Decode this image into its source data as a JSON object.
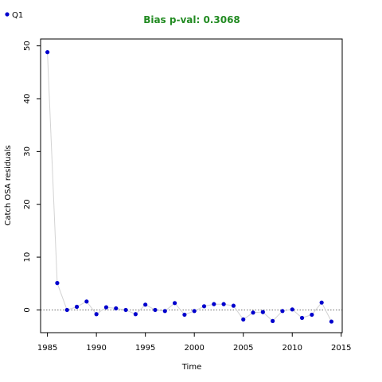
{
  "chart_data": {
    "type": "scatter",
    "title": "Bias p-val: 0.3068",
    "xlabel": "Time",
    "ylabel": "Catch OSA residuals",
    "xlim": [
      1984.3,
      2015.1
    ],
    "ylim": [
      -4.3,
      51.3
    ],
    "xticks": [
      1985,
      1990,
      1995,
      2000,
      2005,
      2010,
      2015
    ],
    "yticks": [
      0,
      10,
      20,
      30,
      40,
      50
    ],
    "legend": {
      "position": "top-left",
      "entries": [
        "Q1"
      ]
    },
    "reference_line": 0,
    "series": [
      {
        "name": "Q1",
        "x": [
          1985,
          1986,
          1987,
          1988,
          1989,
          1990,
          1991,
          1992,
          1993,
          1994,
          1995,
          1996,
          1997,
          1998,
          1999,
          2000,
          2001,
          2002,
          2003,
          2004,
          2005,
          2006,
          2007,
          2008,
          2009,
          2010,
          2011,
          2012,
          2013,
          2014
        ],
        "y": [
          48.8,
          5.1,
          0.0,
          0.6,
          1.6,
          -0.8,
          0.5,
          0.3,
          0.0,
          -0.8,
          1.0,
          0.0,
          -0.2,
          1.3,
          -0.9,
          -0.2,
          0.7,
          1.1,
          1.1,
          0.8,
          -1.8,
          -0.5,
          -0.4,
          -2.1,
          -0.2,
          0.1,
          -1.5,
          -0.9,
          1.4,
          -2.2
        ]
      }
    ]
  },
  "colors": {
    "title": "#228b22",
    "points": "#0000cd",
    "line": "#d3d3d3",
    "reference": "#555555",
    "axis": "#000000"
  }
}
